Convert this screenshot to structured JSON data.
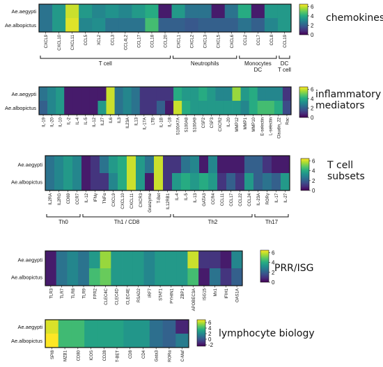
{
  "chart_data": [
    {
      "type": "heatmap",
      "title": "chemokines",
      "rows": [
        "Ae.aegypti",
        "Ae.albopictus"
      ],
      "columns": [
        "CXCL9",
        "CXCL10",
        "CXCL11",
        "CCL5",
        "XCL2",
        "CCL3",
        "CCL4L2",
        "CCL17",
        "CCL18",
        "CCL20",
        "CXCL1",
        "CXCL2",
        "CXCL3",
        "CXCL5",
        "CXCL6",
        "CCL2",
        "CCL7",
        "CCL8",
        "CCL19"
      ],
      "values": [
        [
          2.5,
          3.5,
          6.0,
          3.5,
          3.0,
          3.3,
          3.0,
          3.5,
          4.0,
          0.5,
          3.5,
          2.5,
          2.5,
          0.5,
          2.5,
          4.0,
          0.5,
          3.5,
          3.5
        ],
        [
          2.5,
          3.5,
          6.2,
          3.0,
          3.2,
          2.5,
          2.5,
          2.5,
          4.5,
          2.0,
          2.0,
          1.8,
          2.0,
          2.0,
          2.0,
          2.5,
          2.0,
          3.0,
          3.5
        ]
      ],
      "colorbar": {
        "ticks": [
          "6",
          "4",
          "2",
          "0"
        ],
        "range": [
          0,
          6.5
        ]
      },
      "groups": [
        {
          "label": "T cell",
          "from": 0,
          "to": 9
        },
        {
          "label": "Neutrophils",
          "from": 10,
          "to": 14
        },
        {
          "label": "Monocytes\nDC",
          "from": 15,
          "to": 17
        },
        {
          "label": "DC\nT cell",
          "from": 18,
          "to": 18
        }
      ]
    },
    {
      "type": "heatmap",
      "title": "inflammatory\nmediators",
      "rows": [
        "Ae.aegypti",
        "Ae.albopictus"
      ],
      "columns": [
        "IL-19",
        "IL-20",
        "IL-10",
        "IL-2",
        "IL-4",
        "IL-5",
        "IL-12",
        "IL27",
        "IL6",
        "IL3",
        "IL23A",
        "IL13",
        "IL-17A",
        "LTB",
        "IL-1B",
        "IL-18",
        "S100A7A",
        "S100A8",
        "S100A9",
        "CSF2",
        "CSF3",
        "CXCR2",
        "IL-20",
        "MMP12",
        "MMP1",
        "MMP10",
        "E-selectin",
        "L-selectin",
        "Claudin_22",
        "Rac"
      ],
      "values": [
        [
          2.5,
          3.0,
          3.5,
          0.5,
          0.5,
          0.5,
          0.5,
          0.5,
          6.0,
          2.5,
          3.0,
          2.5,
          1.0,
          1.0,
          1.0,
          1.0,
          4.0,
          3.5,
          3.5,
          4.0,
          3.5,
          3.0,
          3.0,
          5.5,
          3.5,
          4.0,
          3.0,
          3.0,
          3.0,
          1.0
        ],
        [
          2.0,
          3.0,
          3.5,
          0.5,
          0.5,
          0.5,
          0.5,
          3.5,
          6.0,
          2.5,
          3.0,
          2.5,
          1.0,
          1.0,
          2.0,
          0.5,
          6.0,
          4.0,
          3.5,
          3.5,
          3.5,
          3.5,
          3.5,
          3.5,
          3.0,
          4.0,
          4.5,
          4.5,
          4.0,
          1.5
        ]
      ],
      "colorbar": {
        "ticks": [
          "6",
          "4",
          "2",
          "0"
        ],
        "range": [
          0,
          6.5
        ]
      }
    },
    {
      "type": "heatmap",
      "title": "T cell\nsubsets",
      "rows": [
        "Ae.aegypti",
        "Ae.albopictus"
      ],
      "columns": [
        "IL2RA",
        "IL2RG",
        "CD69",
        "CCR7",
        "IL-12",
        "IFNγ",
        "TNFα",
        "CXCL9",
        "CXCL10",
        "CXCL11",
        "CXCR3",
        "Granzyme",
        "T-Bet",
        "IL12RB1",
        "IL-4",
        "IL-5",
        "IL-13",
        "GATA3",
        "CCR4",
        "CCL11",
        "CCL17",
        "CCL22",
        "CCL24",
        "IL-23A",
        "RORγ",
        "IL-17",
        "IL-27"
      ],
      "values": [
        [
          2.5,
          3.0,
          3.5,
          3.0,
          0.5,
          1.0,
          2.5,
          3.5,
          4.0,
          6.0,
          3.5,
          2.5,
          6.0,
          1.0,
          1.0,
          2.5,
          3.0,
          0.5,
          3.0,
          0.5,
          0.5,
          0.5,
          2.0,
          2.0,
          1.0,
          0.5,
          0.5
        ],
        [
          2.5,
          3.0,
          3.5,
          3.0,
          0.5,
          1.0,
          1.0,
          3.0,
          4.0,
          6.0,
          3.5,
          0.5,
          6.0,
          1.0,
          3.5,
          4.0,
          3.5,
          4.0,
          3.5,
          1.0,
          2.0,
          1.0,
          3.5,
          2.0,
          2.5,
          2.0,
          3.5
        ]
      ],
      "colorbar": {
        "ticks": [
          "6",
          "4",
          "2",
          "0"
        ],
        "range": [
          0,
          6.5
        ]
      },
      "groups": [
        {
          "label": "Th0",
          "from": 0,
          "to": 3
        },
        {
          "label": "Th1 / CD8",
          "from": 4,
          "to": 13
        },
        {
          "label": "Th2",
          "from": 14,
          "to": 22
        },
        {
          "label": "Th17",
          "from": 23,
          "to": 26
        }
      ]
    },
    {
      "type": "heatmap",
      "title": "PRR/ISG",
      "rows": [
        "Ae.aegypti",
        "Ae.albopictus"
      ],
      "columns": [
        "TLR3",
        "TLR7",
        "TLR8",
        "TLR9",
        "FPR2",
        "CLEC4C",
        "CLEC4D",
        "CLEC4E",
        "RSAD2",
        "IRF7",
        "STAT1",
        "PYHIN1",
        "ZBP1",
        "APOBEC3A",
        "ISG15",
        "Mx1",
        "IFIH1",
        "OAS1A"
      ],
      "values": [
        [
          0.5,
          2.5,
          3.0,
          2.5,
          3.5,
          5.5,
          3.5,
          3.5,
          3.5,
          3.0,
          3.5,
          3.5,
          3.5,
          6.0,
          1.0,
          1.0,
          0.5,
          3.0
        ],
        [
          0.5,
          2.5,
          3.0,
          2.5,
          4.5,
          5.0,
          3.5,
          3.5,
          3.5,
          3.0,
          3.5,
          3.5,
          3.5,
          4.5,
          0.5,
          2.5,
          1.0,
          2.0
        ]
      ],
      "colorbar": {
        "ticks": [
          "6",
          "4",
          "2",
          "0"
        ],
        "range": [
          0,
          6.5
        ]
      }
    },
    {
      "type": "heatmap",
      "title": "lymphocyte biology",
      "rows": [
        "Ae.aegypti",
        "Ae.albopictus"
      ],
      "columns": [
        "SPI8",
        "MZB1",
        "CD80",
        "ICOS",
        "CD28",
        "T-BET",
        "CD8",
        "CD4",
        "Gata3",
        "RORα",
        "C-Maf"
      ],
      "values": [
        [
          6.5,
          4.0,
          4.0,
          3.0,
          3.0,
          3.0,
          2.5,
          2.5,
          1.0,
          0.5,
          -1.5
        ],
        [
          7.0,
          4.0,
          4.0,
          3.0,
          3.0,
          3.0,
          2.5,
          2.5,
          1.0,
          0.5,
          1.5
        ]
      ],
      "colorbar": {
        "ticks": [
          "6",
          "4",
          "2",
          "0",
          "-2"
        ],
        "range": [
          -2.5,
          7.0
        ]
      }
    }
  ]
}
